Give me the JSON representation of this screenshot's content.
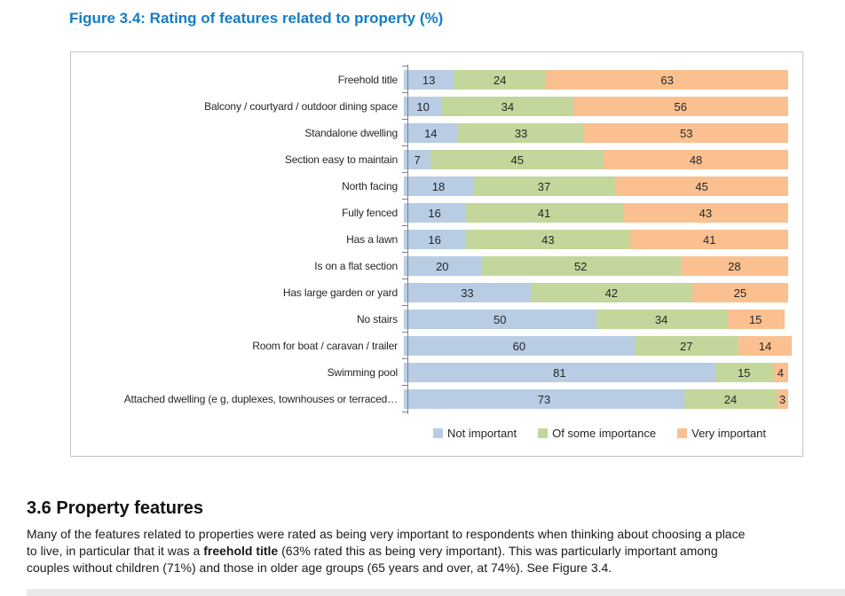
{
  "page": {
    "figure_title": "Figure 3.4: Rating of features related to property (%)",
    "section_heading": "3.6 Property features",
    "paragraph": {
      "before_bold": "Many of the features related to properties were rated as being very important to respondents when thinking about choosing a place to live, in particular that it was a ",
      "bold": "freehold title",
      "after_bold": " (63% rated this as being very important). This was particularly important among couples without children (71%) and those in older age groups (65 years and over, at 74%). See Figure 3.4."
    }
  },
  "chart_data": {
    "type": "bar",
    "orientation": "horizontal",
    "stacked": true,
    "title": "Figure 3.4: Rating of features related to property (%)",
    "xlim": [
      0,
      100
    ],
    "grid": false,
    "legend_position": "bottom",
    "value_labels": true,
    "categories": [
      "Freehold title",
      "Balcony / courtyard / outdoor dining space",
      "Standalone dwelling",
      "Section easy to maintain",
      "North facing",
      "Fully fenced",
      "Has a lawn",
      "Is on a flat section",
      "Has large garden or yard",
      "No stairs",
      "Room for boat / caravan / trailer",
      "Swimming pool",
      "Attached dwelling (e g, duplexes, townhouses or terraced…"
    ],
    "series": [
      {
        "name": "Not important",
        "color": "#B8CCE4",
        "values": [
          13,
          10,
          14,
          7,
          18,
          16,
          16,
          20,
          33,
          50,
          60,
          81,
          73
        ]
      },
      {
        "name": "Of some importance",
        "color": "#C3D69B",
        "values": [
          24,
          34,
          33,
          45,
          37,
          41,
          43,
          52,
          42,
          34,
          27,
          15,
          24
        ]
      },
      {
        "name": "Very important",
        "color": "#FAC090",
        "values": [
          63,
          56,
          53,
          48,
          45,
          43,
          41,
          28,
          25,
          15,
          14,
          4,
          3
        ]
      }
    ]
  }
}
